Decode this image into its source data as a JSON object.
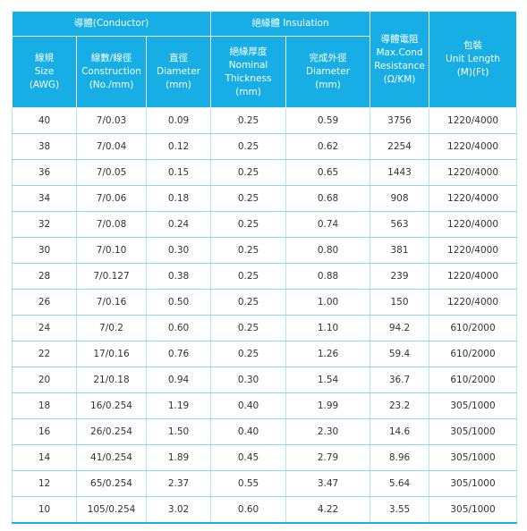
{
  "header": {
    "conductor_group": "導體(Conductor)",
    "insulation_group": "絕緣體 Insulation",
    "columns": [
      {
        "lines": [
          "線規",
          "Size",
          "(AWG)"
        ]
      },
      {
        "lines": [
          "線數/線徑",
          "Construction",
          "(No./mm)"
        ]
      },
      {
        "lines": [
          "直徑",
          "Diameter",
          "(mm)"
        ]
      },
      {
        "lines": [
          "絕緣厚度",
          "Nominal",
          "Thickness",
          "(mm)"
        ]
      },
      {
        "lines": [
          "完成外徑",
          "Diameter",
          "(mm)"
        ]
      },
      {
        "lines": [
          "導體電阻",
          "Max.Cond",
          "Resistance",
          "(Ω/KM)"
        ]
      },
      {
        "lines": [
          "包裝",
          "Unit Length",
          "(M)(Ft)"
        ]
      }
    ]
  },
  "rows": [
    [
      "40",
      "7/0.03",
      "0.09",
      "0.25",
      "0.59",
      "3756",
      "1220/4000"
    ],
    [
      "38",
      "7/0.04",
      "0.12",
      "0.25",
      "0.62",
      "2254",
      "1220/4000"
    ],
    [
      "36",
      "7/0.05",
      "0.15",
      "0.25",
      "0.65",
      "1443",
      "1220/4000"
    ],
    [
      "34",
      "7/0.06",
      "0.18",
      "0.25",
      "0.68",
      "908",
      "1220/4000"
    ],
    [
      "32",
      "7/0.08",
      "0.24",
      "0.25",
      "0.74",
      "563",
      "1220/4000"
    ],
    [
      "30",
      "7/0.10",
      "0.30",
      "0.25",
      "0.80",
      "381",
      "1220/4000"
    ],
    [
      "28",
      "7/0.127",
      "0.38",
      "0.25",
      "0.88",
      "239",
      "1220/4000"
    ],
    [
      "26",
      "7/0.16",
      "0.50",
      "0.25",
      "1.00",
      "150",
      "1220/4000"
    ],
    [
      "24",
      "7/0.2",
      "0.60",
      "0.25",
      "1.10",
      "94.2",
      "610/2000"
    ],
    [
      "22",
      "17/0.16",
      "0.76",
      "0.25",
      "1.26",
      "59.4",
      "610/2000"
    ],
    [
      "20",
      "21/0.18",
      "0.94",
      "0.30",
      "1.54",
      "36.7",
      "610/2000"
    ],
    [
      "18",
      "16/0.254",
      "1.19",
      "0.40",
      "1.99",
      "23.2",
      "305/1000"
    ],
    [
      "16",
      "26/0.254",
      "1.50",
      "0.40",
      "2.30",
      "14.6",
      "305/1000"
    ],
    [
      "14",
      "41/0.254",
      "1.89",
      "0.45",
      "2.79",
      "8.96",
      "305/1000"
    ],
    [
      "12",
      "65/0.254",
      "2.37",
      "0.55",
      "3.47",
      "5.64",
      "305/1000"
    ],
    [
      "10",
      "105/0.254",
      "3.02",
      "0.60",
      "4.22",
      "3.55",
      "305/1000"
    ]
  ],
  "colors": {
    "header_bg": "#16aee5",
    "header_text": "#ffffff",
    "cell_text": "#333333",
    "grid_line": "#8fd4ee"
  }
}
